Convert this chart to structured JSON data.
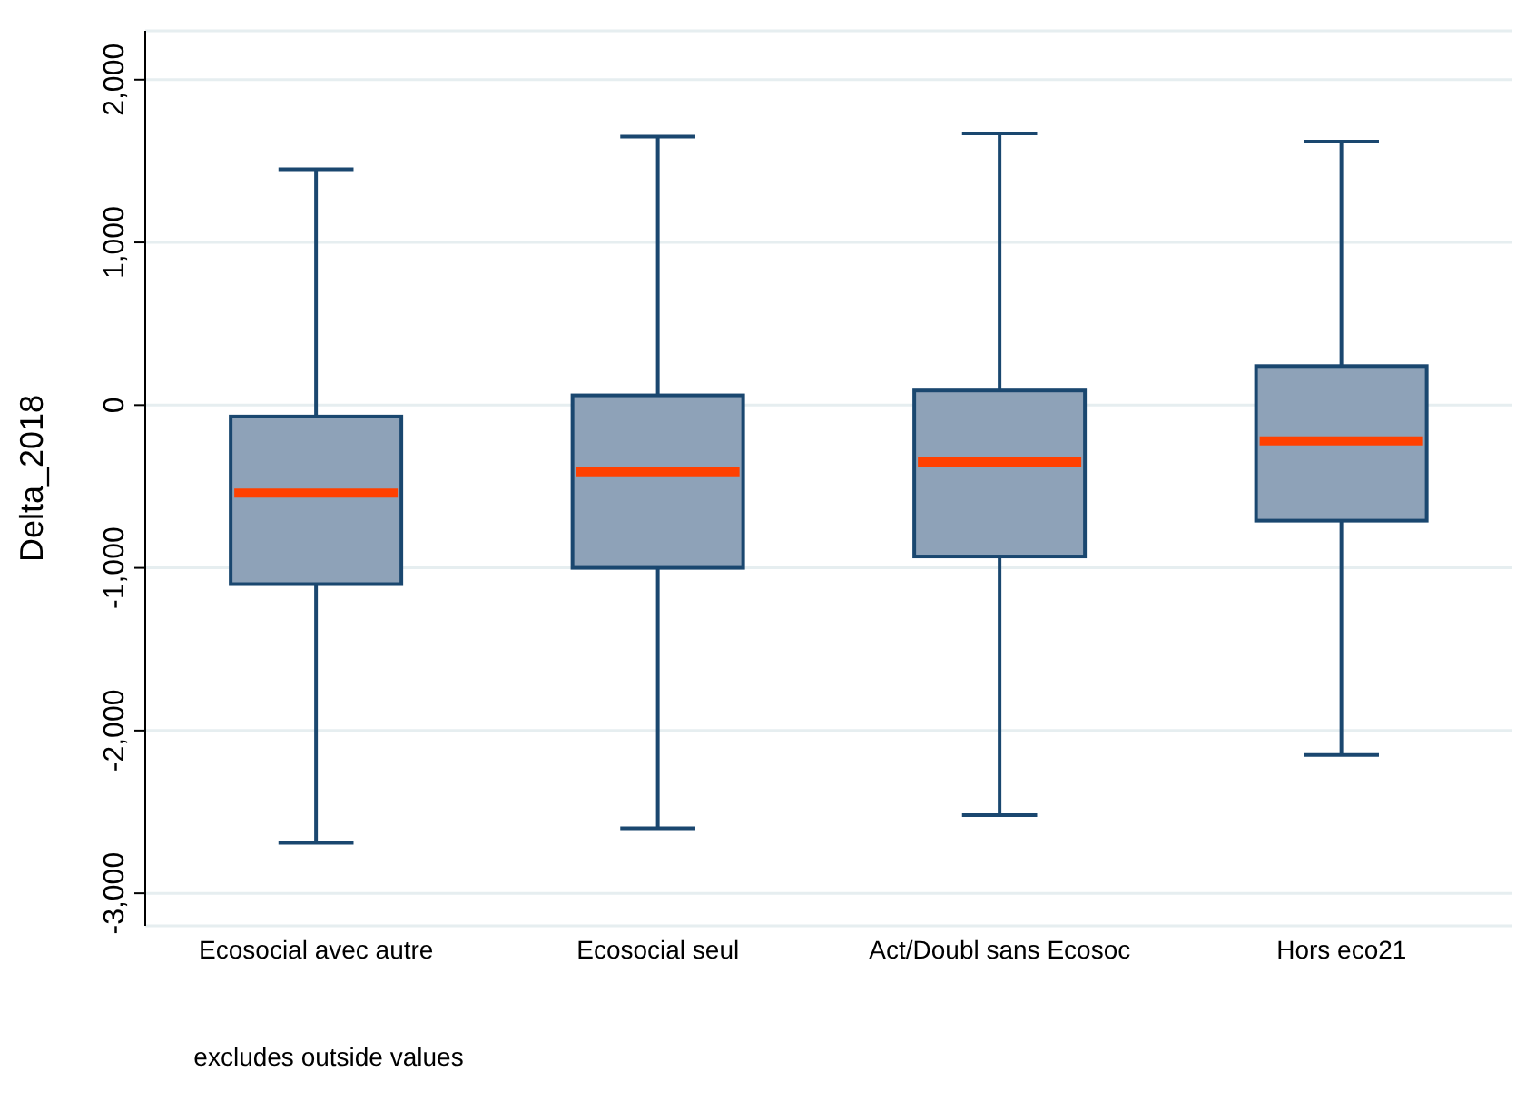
{
  "chart_data": {
    "type": "box",
    "ylabel": "Delta_2018",
    "categories": [
      "Ecosocial avec autre",
      "Ecosocial seul",
      "Act/Doubl sans Ecosoc",
      "Hors eco21"
    ],
    "boxes": [
      {
        "low": -2690,
        "q1": -1100,
        "median": -540,
        "q3": -70,
        "high": 1450
      },
      {
        "low": -2600,
        "q1": -1000,
        "median": -410,
        "q3": 60,
        "high": 1650
      },
      {
        "low": -2520,
        "q1": -930,
        "median": -350,
        "q3": 90,
        "high": 1670
      },
      {
        "low": -2150,
        "q1": -710,
        "median": -220,
        "q3": 240,
        "high": 1620
      }
    ],
    "color": "#8ea2b8",
    "ylim": [
      -3200,
      2300
    ],
    "yticks": [
      {
        "value": -3000,
        "label": "-3,000"
      },
      {
        "value": -2000,
        "label": "-2,000"
      },
      {
        "value": -1000,
        "label": "-1,000"
      },
      {
        "value": 0,
        "label": "0"
      },
      {
        "value": 1000,
        "label": "1,000"
      },
      {
        "value": 2000,
        "label": "2,000"
      }
    ],
    "grid": "y",
    "annotations": [
      "excludes outside values"
    ]
  }
}
